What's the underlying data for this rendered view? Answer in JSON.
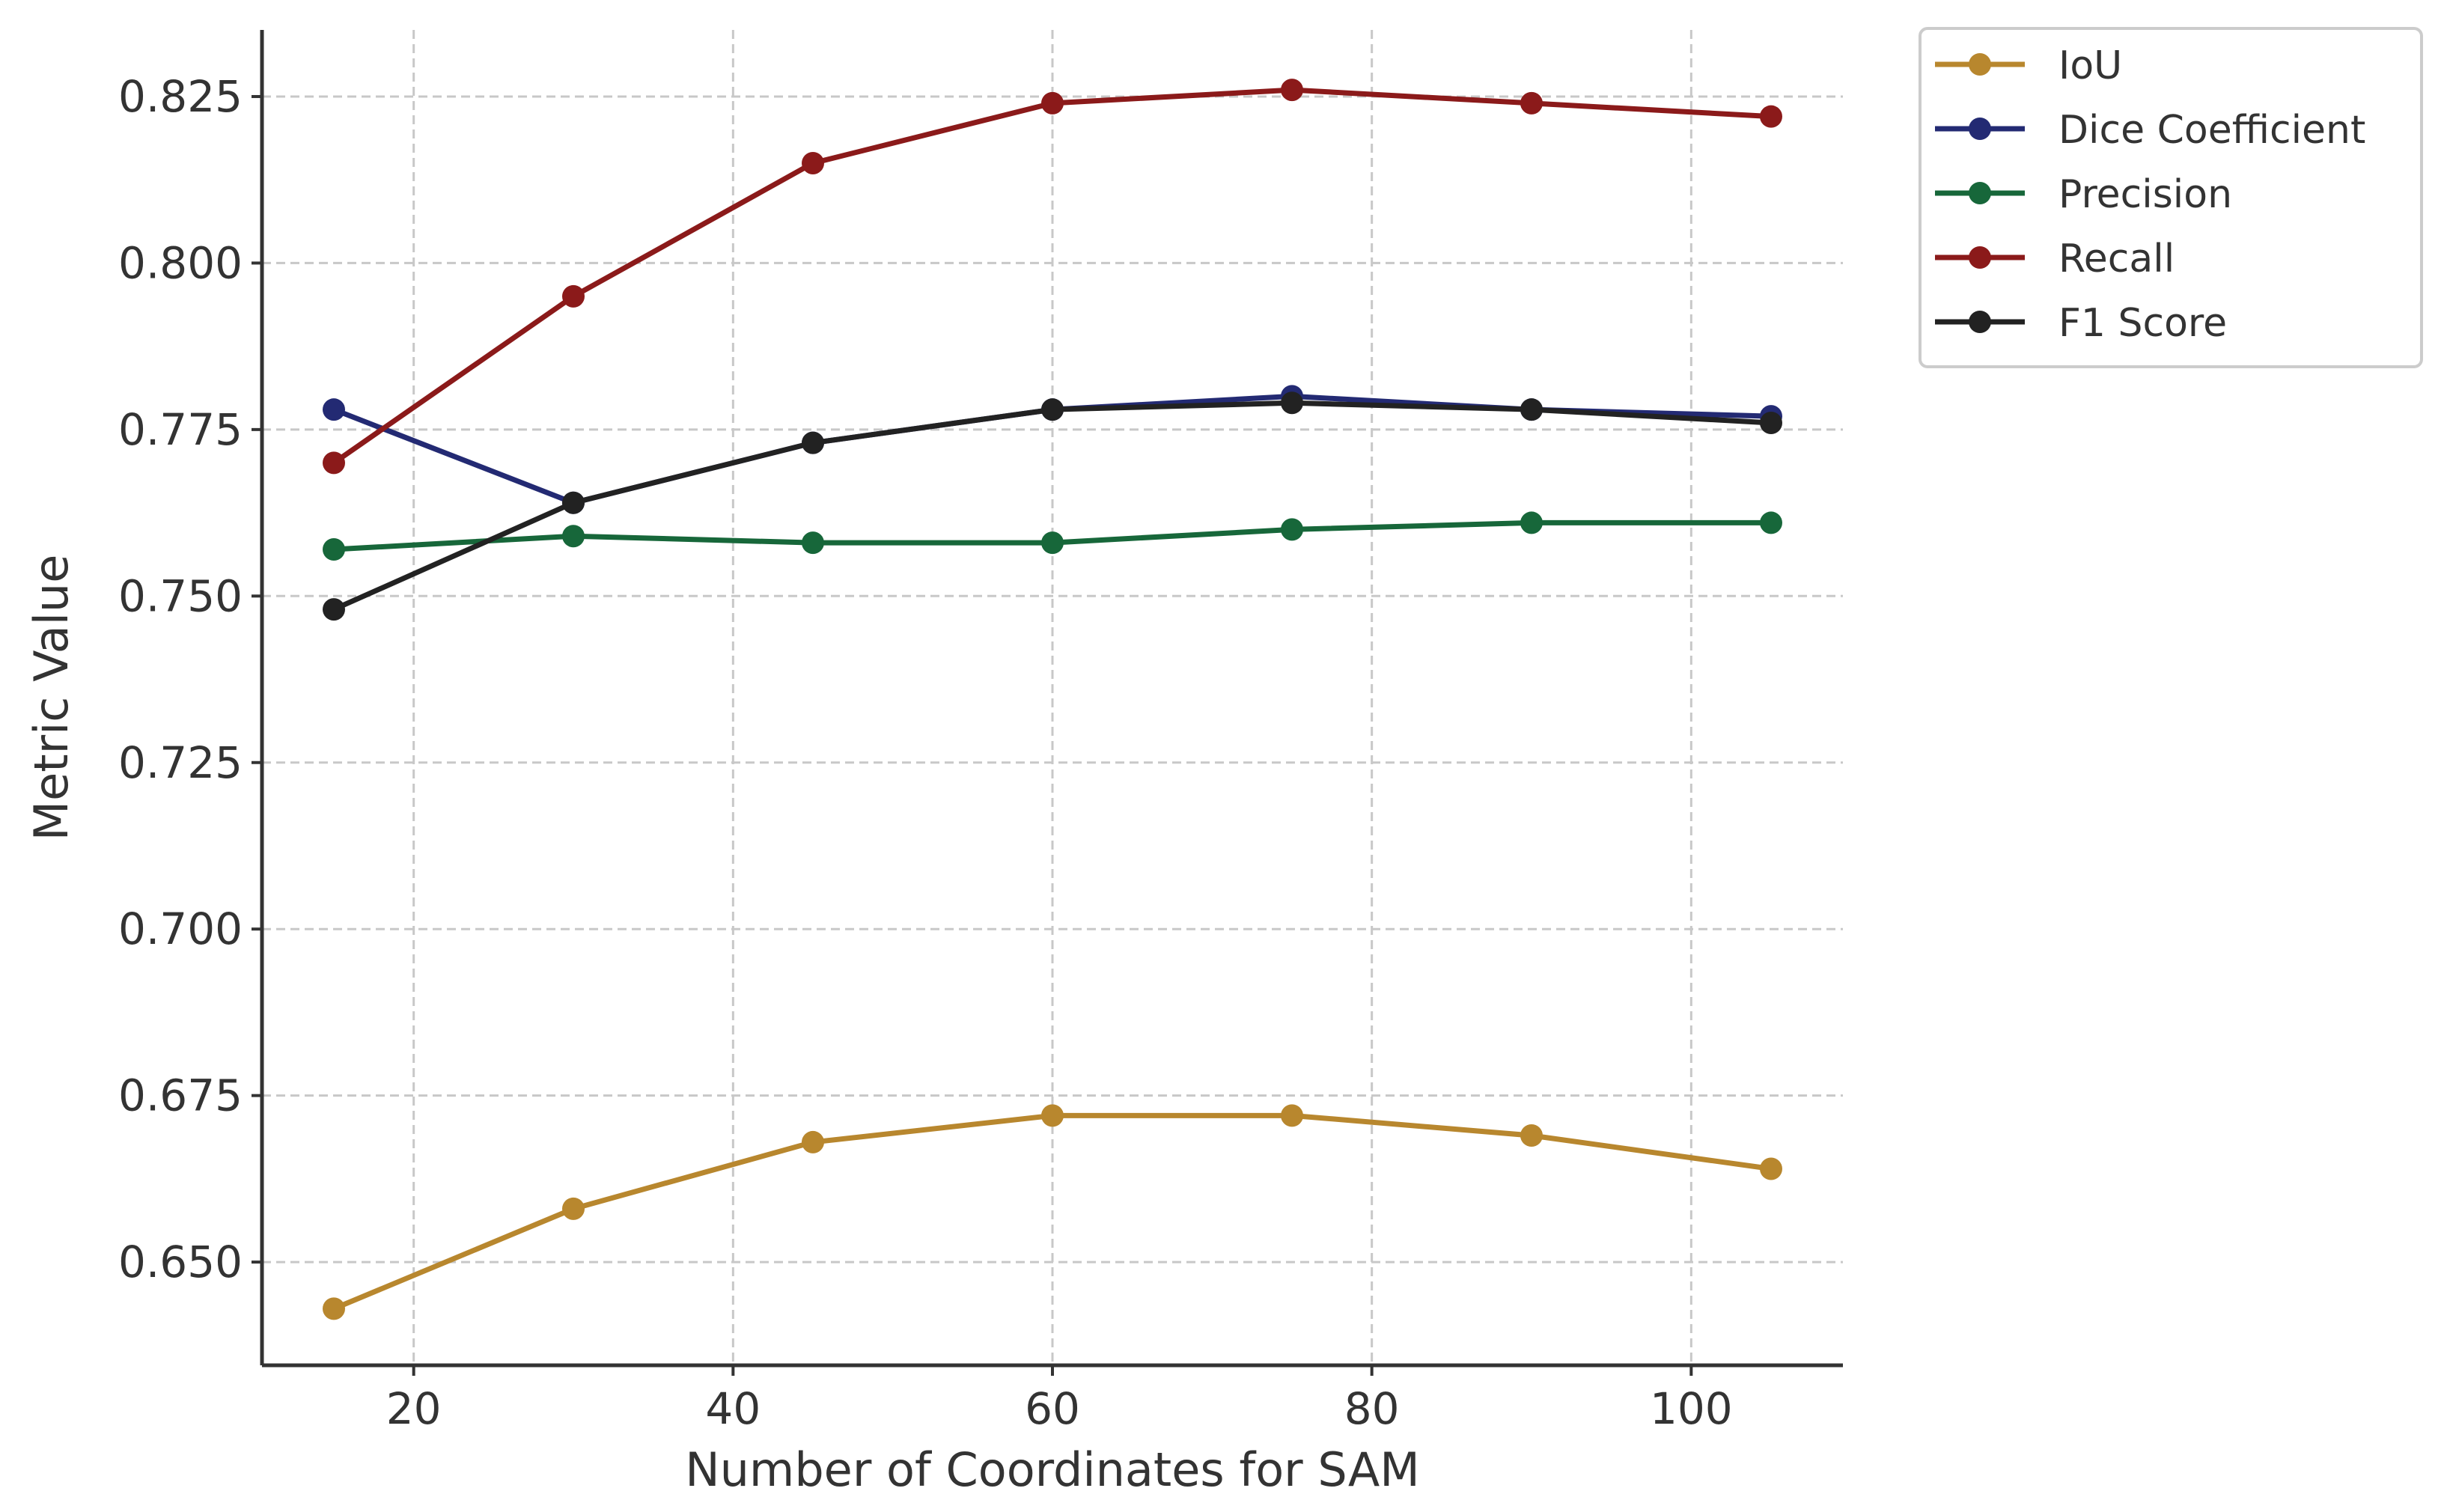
{
  "chart_data": {
    "type": "line",
    "title": "",
    "xlabel": "Number of Coordinates for SAM",
    "ylabel": "Metric Value",
    "xlim": [
      10.5,
      109.5
    ],
    "ylim": [
      0.6345,
      0.835
    ],
    "xticks": [
      20,
      40,
      60,
      80,
      100
    ],
    "yticks": [
      0.65,
      0.675,
      0.7,
      0.725,
      0.75,
      0.775,
      0.8,
      0.825
    ],
    "xtick_labels": [
      "20",
      "40",
      "60",
      "80",
      "100"
    ],
    "ytick_labels": [
      "0.650",
      "0.675",
      "0.700",
      "0.725",
      "0.750",
      "0.775",
      "0.800",
      "0.825"
    ],
    "grid": true,
    "legend_placement": "outside-top-right",
    "x": [
      15,
      30,
      45,
      60,
      75,
      90,
      105
    ],
    "series": [
      {
        "name": "IoU",
        "color": "#b8872e",
        "values": [
          0.643,
          0.658,
          0.668,
          0.672,
          0.672,
          0.669,
          0.664
        ]
      },
      {
        "name": "Dice Coefficient",
        "color": "#232a73",
        "values": [
          0.778,
          0.764,
          0.773,
          0.778,
          0.78,
          0.778,
          0.777
        ]
      },
      {
        "name": "Precision",
        "color": "#17673a",
        "values": [
          0.757,
          0.759,
          0.758,
          0.758,
          0.76,
          0.761,
          0.761
        ]
      },
      {
        "name": "Recall",
        "color": "#8b1a1a",
        "values": [
          0.77,
          0.795,
          0.815,
          0.824,
          0.826,
          0.824,
          0.822
        ]
      },
      {
        "name": "F1 Score",
        "color": "#222222",
        "values": [
          0.748,
          0.764,
          0.773,
          0.778,
          0.779,
          0.778,
          0.776
        ]
      }
    ]
  }
}
